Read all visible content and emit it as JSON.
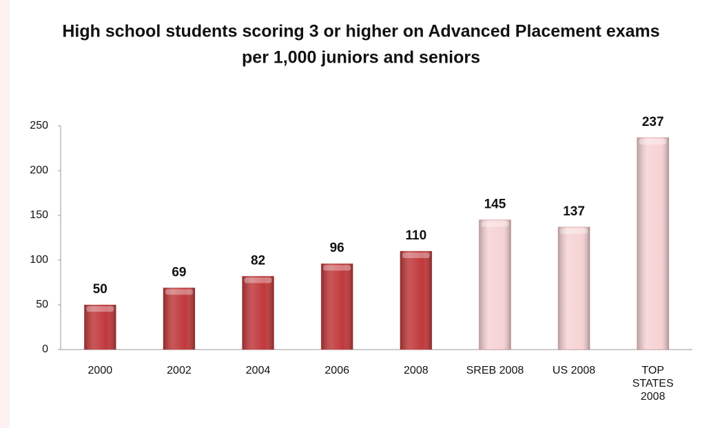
{
  "chart_data": {
    "type": "bar",
    "title": [
      "High school students scoring 3 or higher on Advanced Placement exams",
      "per 1,000 juniors and seniors"
    ],
    "categories": [
      "2000",
      "2002",
      "2004",
      "2006",
      "2008",
      "SREB 2008",
      "US 2008",
      "TOP STATES 2008"
    ],
    "values": [
      50,
      69,
      82,
      96,
      110,
      145,
      137,
      237
    ],
    "colors": [
      "#c0393b",
      "#c0393b",
      "#c0393b",
      "#c0393b",
      "#c0393b",
      "#f7d3d5",
      "#f7d3d5",
      "#f7d3d5"
    ],
    "ylim": [
      0,
      250
    ],
    "yticks": [
      0,
      50,
      100,
      150,
      200,
      250
    ],
    "grid": false
  }
}
